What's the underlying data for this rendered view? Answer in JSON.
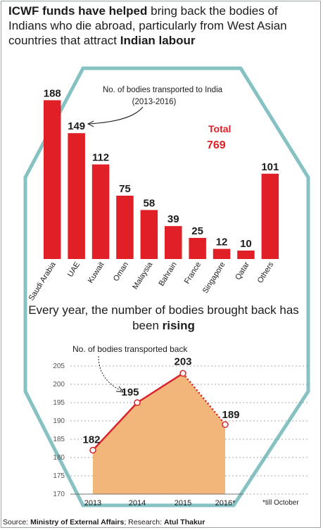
{
  "headline": {
    "part1": "ICWF funds have helped",
    "part2": " bring back the bodies of Indians who die abroad, particularly from West Asian countries that attract ",
    "part3": "Indian labour"
  },
  "bar_annotation": {
    "line1": "No. of bodies transported to India",
    "line2": "(2013-2016)"
  },
  "total": {
    "label": "Total",
    "value": "769"
  },
  "subhead": {
    "part1": "Every year, the number of bodies brought back has been ",
    "part2": "rising"
  },
  "line_annotation": "No. of bodies transported back",
  "footnote": "*till October",
  "source": {
    "label": "Source: ",
    "name": "Ministry of External Affairs",
    "research_label": "; Research: ",
    "research": "Atul Thakur"
  },
  "colors": {
    "bar": "#e01f26",
    "line": "#d9232d",
    "area": "#f2b67a",
    "octagon": "#86c2c4",
    "text": "#1c1c1c"
  },
  "chart_data": [
    {
      "type": "bar",
      "categories": [
        "Saudi Arabia",
        "UAE",
        "Kuwait",
        "Oman",
        "Malaysia",
        "Bahrain",
        "France",
        "Singapore",
        "Qatar",
        "Others"
      ],
      "values": [
        188,
        149,
        112,
        75,
        58,
        39,
        25,
        12,
        10,
        101
      ],
      "data_labels": [
        "188",
        "149",
        "112",
        "75",
        "58",
        "39",
        "25",
        "12",
        "10",
        "101"
      ],
      "title": "",
      "xlabel": "",
      "ylabel": ""
    },
    {
      "type": "area",
      "categories": [
        "2013",
        "2014",
        "2015",
        "2016*"
      ],
      "values": [
        182,
        195,
        203,
        189
      ],
      "data_labels": [
        "182",
        "195",
        "203",
        "189"
      ],
      "ylim": [
        170,
        205
      ],
      "yticks": [
        "170",
        "175",
        "180",
        "185",
        "190",
        "195",
        "200",
        "205"
      ],
      "grid": true,
      "last_segment_dotted": true,
      "title": "",
      "xlabel": "",
      "ylabel": ""
    }
  ]
}
